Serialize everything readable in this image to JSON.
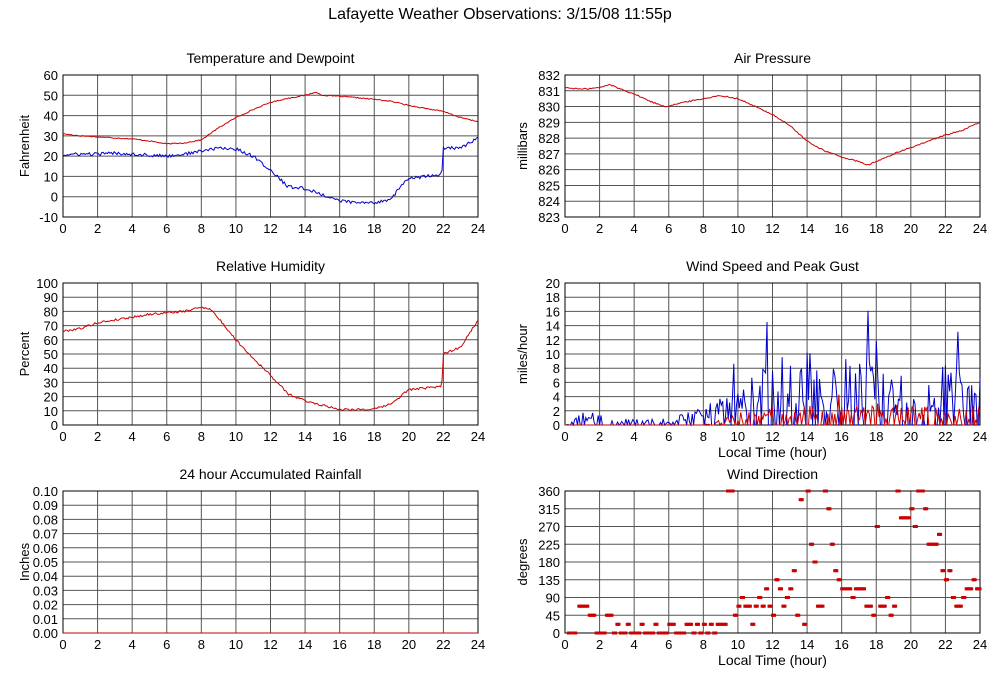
{
  "page": {
    "title": "Lafayette Weather Observations: 3/15/08 11:55p"
  },
  "colors": {
    "red": "#cc0000",
    "blue": "#0000cc",
    "grid": "#555555",
    "axis": "#000000"
  },
  "chart_data": [
    {
      "type": "line",
      "title": "Temperature and Dewpoint",
      "xlabel": "",
      "ylabel": "Fahrenheit",
      "xlim": [
        0,
        24
      ],
      "ylim": [
        -10,
        60
      ],
      "xticks": [
        0,
        2,
        4,
        6,
        8,
        10,
        12,
        14,
        16,
        18,
        20,
        22,
        24
      ],
      "yticks": [
        -10,
        0,
        10,
        20,
        30,
        40,
        50,
        60
      ],
      "grid": true,
      "series": [
        {
          "color": "#cc0000",
          "noise": 0.25,
          "x": [
            0,
            1,
            2,
            3,
            4,
            5,
            6,
            7,
            8,
            9,
            10,
            11,
            12,
            13,
            14,
            14.6,
            15,
            16,
            17,
            18,
            19,
            20,
            21,
            22,
            23,
            24
          ],
          "y": [
            31,
            30,
            29.5,
            29,
            28.5,
            27.5,
            26,
            26.5,
            28,
            34,
            39,
            43,
            46.5,
            48.5,
            50,
            51.5,
            50,
            49.5,
            48.8,
            48,
            47,
            45,
            43.5,
            42,
            39,
            37
          ]
        },
        {
          "color": "#0000cc",
          "noise": 0.8,
          "x": [
            0,
            1,
            2,
            3,
            4,
            5,
            6,
            7,
            8,
            9,
            10,
            11,
            12,
            12.5,
            13,
            14,
            15,
            16,
            17,
            18,
            19,
            19.5,
            20,
            21,
            21.9,
            22,
            23,
            24
          ],
          "y": [
            20.5,
            21,
            21,
            21.5,
            21,
            20.5,
            20,
            21,
            22.5,
            24,
            23.5,
            20,
            13,
            9,
            5,
            4,
            1,
            -2,
            -3,
            -3,
            -1,
            5,
            9,
            10,
            11,
            24,
            24,
            29
          ]
        }
      ]
    },
    {
      "type": "line",
      "title": "Air Pressure",
      "xlabel": "",
      "ylabel": "millibars",
      "xlim": [
        0,
        24
      ],
      "ylim": [
        823,
        832
      ],
      "xticks": [
        0,
        2,
        4,
        6,
        8,
        10,
        12,
        14,
        16,
        18,
        20,
        22,
        24
      ],
      "yticks": [
        823,
        824,
        825,
        826,
        827,
        828,
        829,
        830,
        831,
        832
      ],
      "grid": true,
      "series": [
        {
          "color": "#cc0000",
          "noise": 0.04,
          "x": [
            0,
            1,
            2,
            2.6,
            3,
            4,
            5,
            5.8,
            7,
            8,
            9,
            10,
            11,
            12,
            13,
            14,
            15,
            16,
            17,
            17.5,
            18,
            19,
            20,
            21,
            22,
            23,
            24
          ],
          "y": [
            831.2,
            831.1,
            831.2,
            831.4,
            831.2,
            830.8,
            830.3,
            830.0,
            830.3,
            830.5,
            830.7,
            830.5,
            830.0,
            829.5,
            828.8,
            827.8,
            827.2,
            826.8,
            826.5,
            826.3,
            826.5,
            827.0,
            827.4,
            827.8,
            828.2,
            828.5,
            829.0
          ]
        }
      ]
    },
    {
      "type": "line",
      "title": "Relative Humidity",
      "xlabel": "",
      "ylabel": "Percent",
      "xlim": [
        0,
        24
      ],
      "ylim": [
        0,
        100
      ],
      "xticks": [
        0,
        2,
        4,
        6,
        8,
        10,
        12,
        14,
        16,
        18,
        20,
        22,
        24
      ],
      "yticks": [
        0,
        10,
        20,
        30,
        40,
        50,
        60,
        70,
        80,
        90,
        100
      ],
      "grid": true,
      "series": [
        {
          "color": "#cc0000",
          "noise": 0.8,
          "x": [
            0,
            1,
            2,
            3,
            4,
            5,
            6,
            7,
            8,
            8.5,
            9,
            10,
            11,
            12,
            13,
            14,
            15,
            16,
            17,
            18,
            19,
            20,
            21,
            21.9,
            22,
            23,
            24
          ],
          "y": [
            66,
            68,
            72,
            74,
            76,
            78,
            79,
            80,
            83,
            82,
            75,
            60,
            47,
            35,
            22,
            17,
            14,
            11,
            11,
            11,
            15,
            25,
            26,
            27,
            50,
            55,
            74
          ]
        }
      ]
    },
    {
      "type": "line",
      "title": "Wind Speed and Peak Gust",
      "xlabel": "Local Time (hour)",
      "ylabel": "miles/hour",
      "xlim": [
        0,
        24
      ],
      "ylim": [
        0,
        20
      ],
      "xticks": [
        0,
        2,
        4,
        6,
        8,
        10,
        12,
        14,
        16,
        18,
        20,
        22,
        24
      ],
      "yticks": [
        0,
        2,
        4,
        6,
        8,
        10,
        12,
        14,
        16,
        18,
        20
      ],
      "grid": true,
      "series": [
        {
          "color": "#0000cc",
          "spiky": true,
          "seed": 11,
          "x": [
            0,
            1,
            2,
            3,
            4,
            5,
            6,
            7,
            8,
            9,
            10,
            11,
            12,
            13,
            14,
            15,
            16,
            17,
            18,
            19,
            20,
            21,
            22,
            23,
            24
          ],
          "y": [
            0,
            1,
            1,
            0.5,
            0.5,
            0.5,
            0.5,
            1,
            1.5,
            2,
            3,
            4,
            5,
            6,
            6,
            6,
            5.5,
            5,
            5,
            4.5,
            4,
            4,
            5,
            5,
            4
          ]
        },
        {
          "color": "#cc0000",
          "spiky": true,
          "seed": 29,
          "x": [
            0,
            8,
            9,
            10,
            11,
            12,
            14,
            16,
            18,
            20,
            22,
            24
          ],
          "y": [
            0,
            0,
            0.5,
            1,
            1,
            1.5,
            1.5,
            1.5,
            1.5,
            1.5,
            1.5,
            1.5
          ]
        }
      ]
    },
    {
      "type": "line",
      "title": "24 hour Accumulated Rainfall",
      "xlabel": "",
      "ylabel": "Inches",
      "xlim": [
        0,
        24
      ],
      "ylim": [
        0,
        0.1
      ],
      "xticks": [
        0,
        2,
        4,
        6,
        8,
        10,
        12,
        14,
        16,
        18,
        20,
        22,
        24
      ],
      "yticks": [
        0.0,
        0.01,
        0.02,
        0.03,
        0.04,
        0.05,
        0.06,
        0.07,
        0.08,
        0.09,
        0.1
      ],
      "ytick_labels": [
        "0.00",
        "0.01",
        "0.02",
        "0.03",
        "0.04",
        "0.05",
        "0.06",
        "0.07",
        "0.08",
        "0.09",
        "0.10"
      ],
      "grid": true,
      "series": [
        {
          "color": "#cc0000",
          "noise": 0,
          "x": [
            0,
            24
          ],
          "y": [
            0,
            0
          ]
        }
      ]
    },
    {
      "type": "scatter",
      "title": "Wind Direction",
      "xlabel": "Local Time (hour)",
      "ylabel": "degrees",
      "xlim": [
        0,
        24
      ],
      "ylim": [
        0,
        360
      ],
      "xticks": [
        0,
        2,
        4,
        6,
        8,
        10,
        12,
        14,
        16,
        18,
        20,
        22,
        24
      ],
      "yticks": [
        0,
        45,
        90,
        135,
        180,
        225,
        270,
        315,
        360
      ],
      "grid": true,
      "series": [
        {
          "color": "#cc0000",
          "x": [
            0.2,
            0.5,
            0.8,
            1.0,
            1.2,
            1.4,
            1.6,
            1.8,
            2.0,
            2.2,
            2.4,
            2.6,
            2.8,
            3.0,
            3.2,
            3.4,
            3.6,
            3.8,
            4.0,
            4.2,
            4.4,
            4.6,
            4.8,
            5.0,
            5.2,
            5.4,
            5.6,
            5.8,
            6.0,
            6.2,
            6.4,
            6.6,
            6.8,
            7.0,
            7.2,
            7.4,
            7.6,
            7.8,
            8.0,
            8.2,
            8.4,
            8.6,
            8.8,
            9.0,
            9.2,
            9.4,
            9.6,
            9.8,
            10.0,
            10.2,
            10.4,
            10.6,
            10.8,
            11.0,
            11.2,
            11.4,
            11.6,
            11.8,
            12.0,
            12.2,
            12.4,
            12.6,
            12.8,
            13.0,
            13.2,
            13.4,
            13.6,
            13.8,
            14.0,
            14.2,
            14.4,
            14.6,
            14.8,
            15.0,
            15.2,
            15.4,
            15.6,
            15.8,
            16.0,
            16.2,
            16.4,
            16.6,
            16.8,
            17.0,
            17.2,
            17.4,
            17.6,
            17.8,
            18.0,
            18.2,
            18.4,
            18.6,
            18.8,
            19.0,
            19.2,
            19.4,
            19.6,
            19.8,
            20.0,
            20.2,
            20.4,
            20.6,
            20.8,
            21.0,
            21.2,
            21.4,
            21.6,
            21.8,
            22.0,
            22.2,
            22.4,
            22.6,
            22.8,
            23.0,
            23.2,
            23.4,
            23.6,
            23.8,
            24.0
          ],
          "y": [
            0,
            0,
            68,
            68,
            68,
            45,
            45,
            0,
            0,
            0,
            45,
            45,
            0,
            22,
            0,
            0,
            22,
            0,
            0,
            0,
            22,
            0,
            0,
            0,
            22,
            0,
            0,
            0,
            22,
            22,
            0,
            0,
            0,
            22,
            22,
            0,
            22,
            0,
            22,
            0,
            22,
            0,
            22,
            22,
            22,
            360,
            360,
            45,
            68,
            90,
            68,
            68,
            22,
            68,
            90,
            68,
            112,
            68,
            45,
            135,
            112,
            68,
            90,
            112,
            158,
            45,
            338,
            22,
            360,
            225,
            180,
            68,
            68,
            360,
            315,
            225,
            158,
            135,
            112,
            112,
            112,
            90,
            112,
            112,
            112,
            68,
            68,
            45,
            270,
            68,
            68,
            90,
            45,
            68,
            360,
            292,
            292,
            292,
            315,
            270,
            360,
            360,
            315,
            225,
            225,
            225,
            250,
            158,
            135,
            158,
            90,
            68,
            68,
            90,
            112,
            112,
            135,
            112,
            112
          ]
        }
      ]
    }
  ]
}
